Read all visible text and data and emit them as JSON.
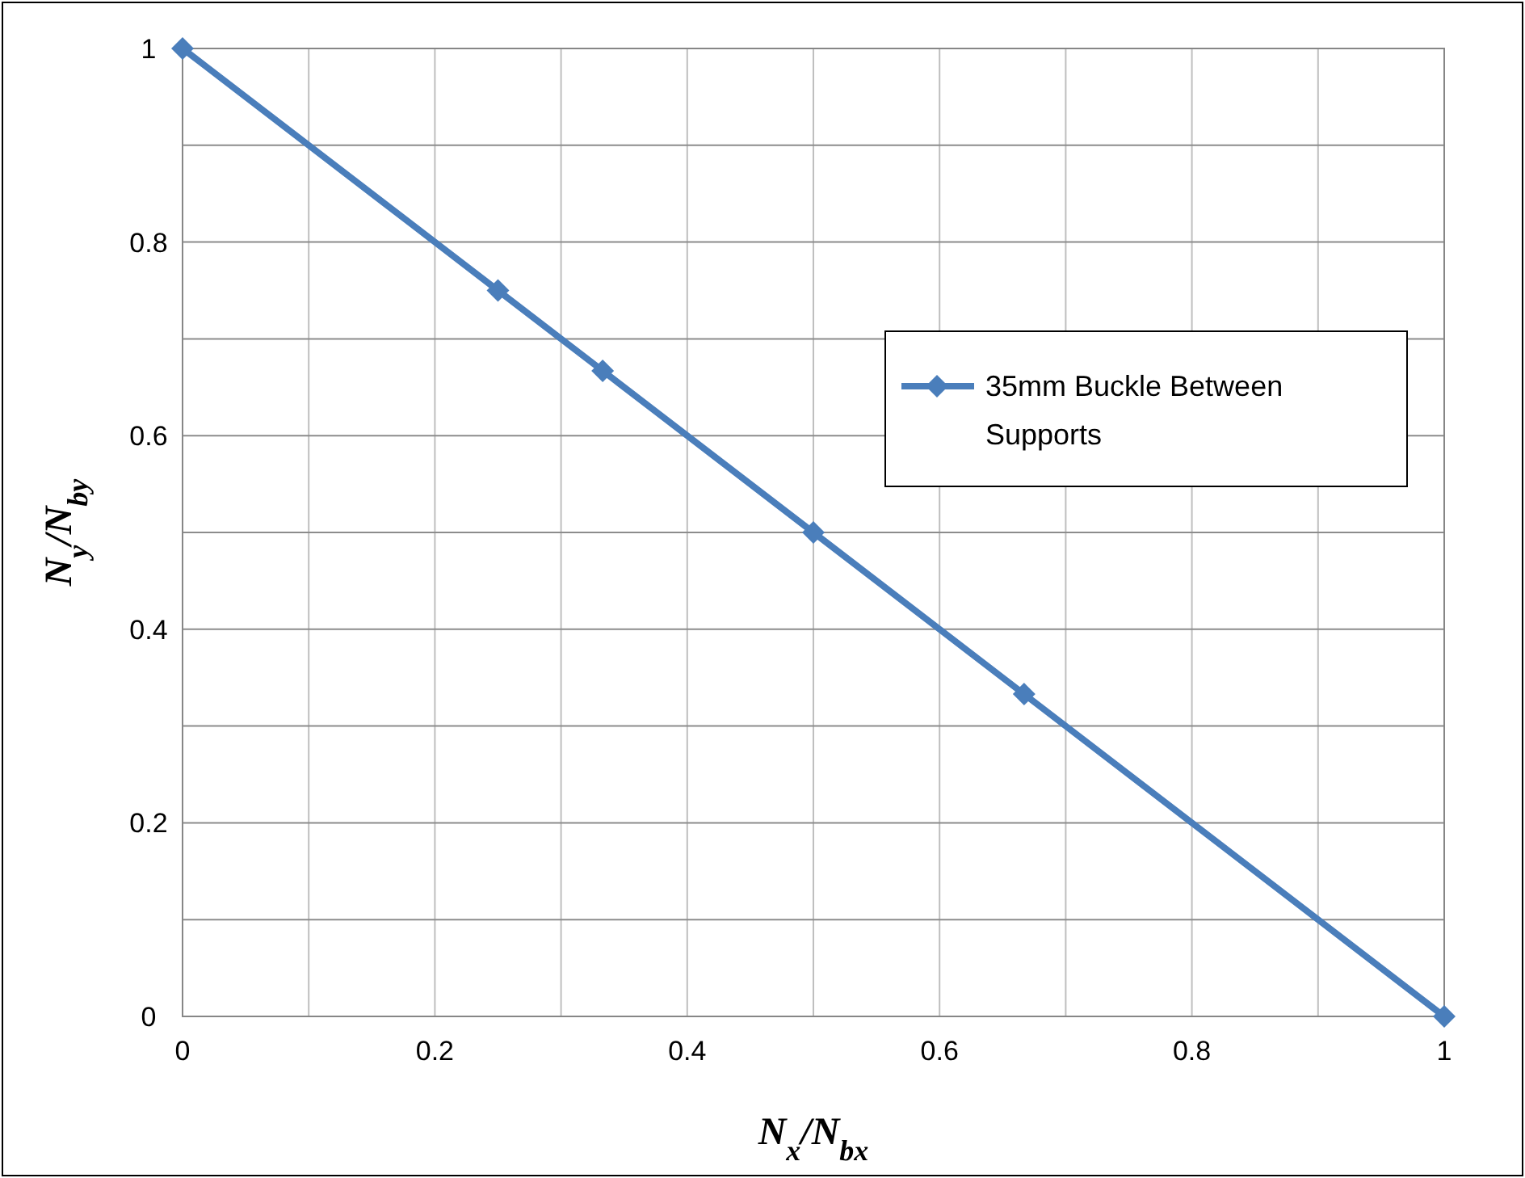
{
  "chart_data": {
    "type": "line",
    "xlabel": "N$_{x}$/N$_{bx}$",
    "ylabel": "N$_{y}$/N$_{by}$",
    "x": [
      0,
      0.25,
      0.333,
      0.5,
      0.667,
      1
    ],
    "series": [
      {
        "name": "35mm Buckle Between Supports",
        "color": "#4a7ebb",
        "values": [
          1,
          0.75,
          0.667,
          0.5,
          0.333,
          0
        ]
      }
    ],
    "xlim": [
      0,
      1
    ],
    "ylim": [
      0,
      1
    ],
    "xticks": [
      0,
      {
        "value": 0.1,
        "label": null
      },
      0.2,
      {
        "value": 0.3,
        "label": null
      },
      0.4,
      {
        "value": 0.5,
        "label": null
      },
      0.6,
      {
        "value": 0.7,
        "label": null
      },
      0.8,
      {
        "value": 0.9,
        "label": null
      },
      1
    ],
    "yticks": [
      0,
      {
        "value": 0.1,
        "label": null
      },
      0.2,
      {
        "value": 0.3,
        "label": null
      },
      0.4,
      {
        "value": 0.5,
        "label": null
      },
      0.6,
      {
        "value": 0.7,
        "label": null
      },
      0.8,
      {
        "value": 0.9,
        "label": null
      },
      1
    ],
    "grid": true,
    "legend": "right",
    "marker": "diamond",
    "line_style": "solid"
  }
}
